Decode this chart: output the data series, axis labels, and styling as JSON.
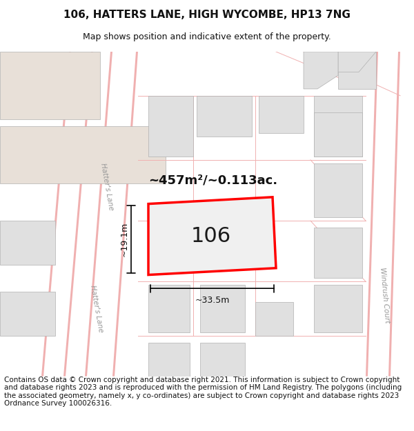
{
  "title": "106, HATTERS LANE, HIGH WYCOMBE, HP13 7NG",
  "subtitle": "Map shows position and indicative extent of the property.",
  "footer": "Contains OS data © Crown copyright and database right 2021. This information is subject to Crown copyright and database rights 2023 and is reproduced with the permission of HM Land Registry. The polygons (including the associated geometry, namely x, y co-ordinates) are subject to Crown copyright and database rights 2023 Ordnance Survey 100026316.",
  "bg_color": "#f7f5f2",
  "map_white": "#ffffff",
  "building_color": "#e0e0e0",
  "building_edge": "#b0b0b0",
  "beige_block": "#e8e0d8",
  "plot_edge": "#ff0000",
  "road_line_color": "#f0b0b0",
  "title_fontsize": 11,
  "subtitle_fontsize": 9,
  "footer_fontsize": 7.5,
  "area_label": "~457m²/~0.113ac.",
  "width_label": "~33.5m",
  "height_label": "~19.1m",
  "number_label": "106",
  "street_label1": "Hatter's Lane",
  "street_label2": "Hatter's Lane",
  "street_label3": "Windrush Court"
}
